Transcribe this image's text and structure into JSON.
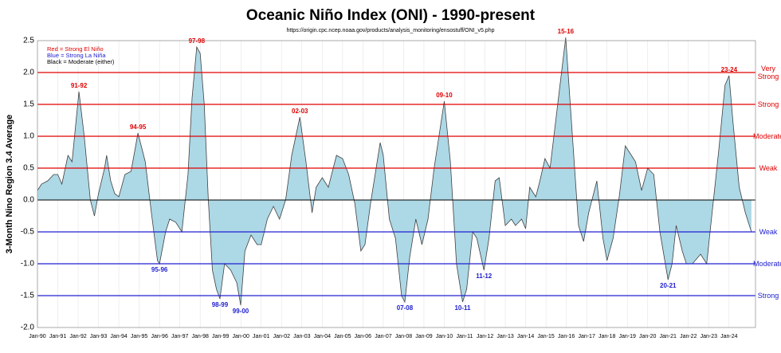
{
  "chart_data": {
    "type": "area",
    "title": "Oceanic Niño Index (ONI) - 1990-present",
    "subtitle": "https://origin.cpc.ncep.noaa.gov/products/analysis_monitoring/ensostuff/ONI_v5.php",
    "y_label": "3-Month Nino Region 3.4 Average",
    "notes": [
      {
        "text": "Red = Strong  El Niño",
        "color": "#e00000"
      },
      {
        "text": "Blue = Strong  La Niña",
        "color": "#2020d0"
      },
      {
        "text": "Black = Moderate (either)",
        "color": "#000000"
      }
    ],
    "x": [
      1990.0,
      1990.2,
      1990.5,
      1990.8,
      1991.0,
      1991.2,
      1991.5,
      1991.7,
      1992.04,
      1992.3,
      1992.6,
      1992.8,
      1993.0,
      1993.3,
      1993.4,
      1993.6,
      1993.8,
      1994.0,
      1994.3,
      1994.6,
      1994.8,
      1994.94,
      1995.3,
      1995.6,
      1995.9,
      1996.0,
      1996.3,
      1996.5,
      1996.8,
      1997.1,
      1997.4,
      1997.6,
      1997.83,
      1998.0,
      1998.2,
      1998.4,
      1998.6,
      1998.8,
      1998.97,
      1999.2,
      1999.5,
      1999.8,
      1999.99,
      2000.2,
      2000.5,
      2000.8,
      2001.0,
      2001.3,
      2001.6,
      2001.9,
      2002.2,
      2002.5,
      2002.9,
      2003.2,
      2003.5,
      2003.7,
      2004.0,
      2004.3,
      2004.7,
      2005.0,
      2005.3,
      2005.6,
      2005.9,
      2006.1,
      2006.4,
      2006.85,
      2007.0,
      2007.3,
      2007.6,
      2007.9,
      2008.06,
      2008.3,
      2008.6,
      2008.9,
      2009.2,
      2009.5,
      2010.0,
      2010.3,
      2010.6,
      2010.9,
      2011.1,
      2011.4,
      2011.6,
      2011.95,
      2012.2,
      2012.5,
      2012.7,
      2013.0,
      2013.3,
      2013.5,
      2013.8,
      2014.0,
      2014.2,
      2014.5,
      2014.7,
      2014.95,
      2015.2,
      2015.5,
      2015.97,
      2016.3,
      2016.6,
      2016.85,
      2017.1,
      2017.5,
      2017.8,
      2018.0,
      2018.3,
      2018.6,
      2018.9,
      2019.2,
      2019.4,
      2019.7,
      2020.0,
      2020.3,
      2020.6,
      2021.0,
      2021.2,
      2021.4,
      2021.7,
      2021.9,
      2022.2,
      2022.6,
      2022.9,
      2023.1,
      2023.5,
      2023.8,
      2024.0,
      2024.2,
      2024.5,
      2024.8,
      2025.1
    ],
    "values": [
      0.15,
      0.25,
      0.3,
      0.4,
      0.4,
      0.25,
      0.7,
      0.6,
      1.7,
      1.0,
      0.0,
      -0.25,
      0.1,
      0.5,
      0.7,
      0.3,
      0.1,
      0.05,
      0.4,
      0.45,
      0.8,
      1.05,
      0.6,
      -0.2,
      -0.95,
      -1.0,
      -0.5,
      -0.3,
      -0.35,
      -0.5,
      0.4,
      1.6,
      2.4,
      2.3,
      1.5,
      0.0,
      -1.1,
      -1.4,
      -1.55,
      -1.0,
      -1.1,
      -1.3,
      -1.65,
      -0.8,
      -0.55,
      -0.7,
      -0.7,
      -0.3,
      -0.1,
      -0.3,
      0.0,
      0.7,
      1.3,
      0.6,
      -0.2,
      0.2,
      0.35,
      0.2,
      0.7,
      0.65,
      0.4,
      -0.05,
      -0.8,
      -0.7,
      0.0,
      0.9,
      0.7,
      -0.3,
      -0.6,
      -1.5,
      -1.6,
      -0.9,
      -0.3,
      -0.7,
      -0.3,
      0.5,
      1.55,
      0.6,
      -1.0,
      -1.6,
      -1.4,
      -0.5,
      -0.6,
      -1.1,
      -0.6,
      0.3,
      0.35,
      -0.4,
      -0.3,
      -0.4,
      -0.3,
      -0.45,
      0.2,
      0.05,
      0.3,
      0.65,
      0.5,
      1.3,
      2.55,
      1.0,
      -0.4,
      -0.65,
      -0.2,
      0.3,
      -0.6,
      -0.95,
      -0.6,
      0.05,
      0.85,
      0.7,
      0.6,
      0.15,
      0.5,
      0.4,
      -0.5,
      -1.25,
      -1.0,
      -0.4,
      -0.8,
      -1.0,
      -1.0,
      -0.85,
      -1.0,
      -0.4,
      0.8,
      1.8,
      1.95,
      1.2,
      0.2,
      -0.2,
      -0.5
    ],
    "color": "#add8e6",
    "line_color": "#404040",
    "xlim": [
      1990,
      2025.3
    ],
    "ylim": [
      -2.0,
      2.5
    ],
    "yticks": [
      {
        "value": -2.0,
        "label": "-2.0"
      },
      -1.5,
      {
        "value": -1.0,
        "label": "-1.0"
      },
      -0.5,
      {
        "value": 0.0,
        "label": "0.0"
      },
      0.5,
      {
        "value": 1.0,
        "label": "1.0"
      },
      1.5,
      {
        "value": 2.0,
        "label": "2.0"
      },
      2.5
    ],
    "xticks": [
      {
        "value": 1990,
        "label": "Jan-90"
      },
      {
        "value": 1991,
        "label": "Jan-91"
      },
      {
        "value": 1992,
        "label": "Jan-92"
      },
      {
        "value": 1993,
        "label": "Jan-93"
      },
      {
        "value": 1994,
        "label": "Jan-94"
      },
      {
        "value": 1995,
        "label": "Jan-95"
      },
      {
        "value": 1996,
        "label": "Jan-96"
      },
      {
        "value": 1997,
        "label": "Jan-97"
      },
      {
        "value": 1998,
        "label": "Jan-98"
      },
      {
        "value": 1999,
        "label": "Jan-99"
      },
      {
        "value": 2000,
        "label": "Jan-00"
      },
      {
        "value": 2001,
        "label": "Jan-01"
      },
      {
        "value": 2002,
        "label": "Jan-02"
      },
      {
        "value": 2003,
        "label": "Jan-03"
      },
      {
        "value": 2004,
        "label": "Jan-04"
      },
      {
        "value": 2005,
        "label": "Jan-05"
      },
      {
        "value": 2006,
        "label": "Jan-06"
      },
      {
        "value": 2007,
        "label": "Jan-07"
      },
      {
        "value": 2008,
        "label": "Jan-08"
      },
      {
        "value": 2009,
        "label": "Jan-09"
      },
      {
        "value": 2010,
        "label": "Jan-10"
      },
      {
        "value": 2011,
        "label": "Jan-11"
      },
      {
        "value": 2012,
        "label": "Jan-12"
      },
      {
        "value": 2013,
        "label": "Jan-13"
      },
      {
        "value": 2014,
        "label": "Jan-14"
      },
      {
        "value": 2015,
        "label": "Jan-15"
      },
      {
        "value": 2016,
        "label": "Jan-16"
      },
      {
        "value": 2017,
        "label": "Jan-17"
      },
      {
        "value": 2018,
        "label": "Jan-18"
      },
      {
        "value": 2019,
        "label": "Jan-19"
      },
      {
        "value": 2020,
        "label": "Jan-20"
      },
      {
        "value": 2021,
        "label": "Jan-21"
      },
      {
        "value": 2022,
        "label": "Jan-22"
      },
      {
        "value": 2023,
        "label": "Jan-23"
      },
      {
        "value": 2024,
        "label": "Jan-24"
      }
    ],
    "grid": true,
    "thresholds": [
      {
        "value": 2.0,
        "label": "Very Strong",
        "color": "#e00000"
      },
      {
        "value": 1.5,
        "label": "Strong",
        "color": "#e00000"
      },
      {
        "value": 1.0,
        "label": "Moderate",
        "color": "#e00000"
      },
      {
        "value": 0.5,
        "label": "Weak",
        "color": "#e00000"
      },
      {
        "value": -0.5,
        "label": "Weak",
        "color": "#2020d0"
      },
      {
        "value": -1.0,
        "label": "Moderate",
        "color": "#2020d0"
      },
      {
        "value": -1.5,
        "label": "Strong",
        "color": "#2020d0"
      }
    ],
    "annotations": [
      {
        "text": "91-92",
        "x": 1992.04,
        "y": 1.7,
        "color": "#e00000"
      },
      {
        "text": "94-95",
        "x": 1994.94,
        "y": 1.05,
        "color": "#e00000"
      },
      {
        "text": "97-98",
        "x": 1997.83,
        "y": 2.4,
        "color": "#e00000"
      },
      {
        "text": "02-03",
        "x": 2002.9,
        "y": 1.3,
        "color": "#e00000"
      },
      {
        "text": "09-10",
        "x": 2010.0,
        "y": 1.55,
        "color": "#e00000"
      },
      {
        "text": "15-16",
        "x": 2015.97,
        "y": 2.55,
        "color": "#e00000"
      },
      {
        "text": "23-24",
        "x": 2024.0,
        "y": 1.95,
        "color": "#e00000"
      },
      {
        "text": "95-96",
        "x": 1996.0,
        "y": -1.0,
        "color": "#2020d0"
      },
      {
        "text": "98-99",
        "x": 1998.97,
        "y": -1.55,
        "color": "#2020d0"
      },
      {
        "text": "99-00",
        "x": 1999.99,
        "y": -1.65,
        "color": "#2020d0"
      },
      {
        "text": "07-08",
        "x": 2008.06,
        "y": -1.6,
        "color": "#2020d0"
      },
      {
        "text": "10-11",
        "x": 2010.9,
        "y": -1.6,
        "color": "#2020d0"
      },
      {
        "text": "11-12",
        "x": 2011.95,
        "y": -1.1,
        "color": "#2020d0"
      },
      {
        "text": "20-21",
        "x": 2021.0,
        "y": -1.25,
        "color": "#2020d0"
      }
    ]
  }
}
